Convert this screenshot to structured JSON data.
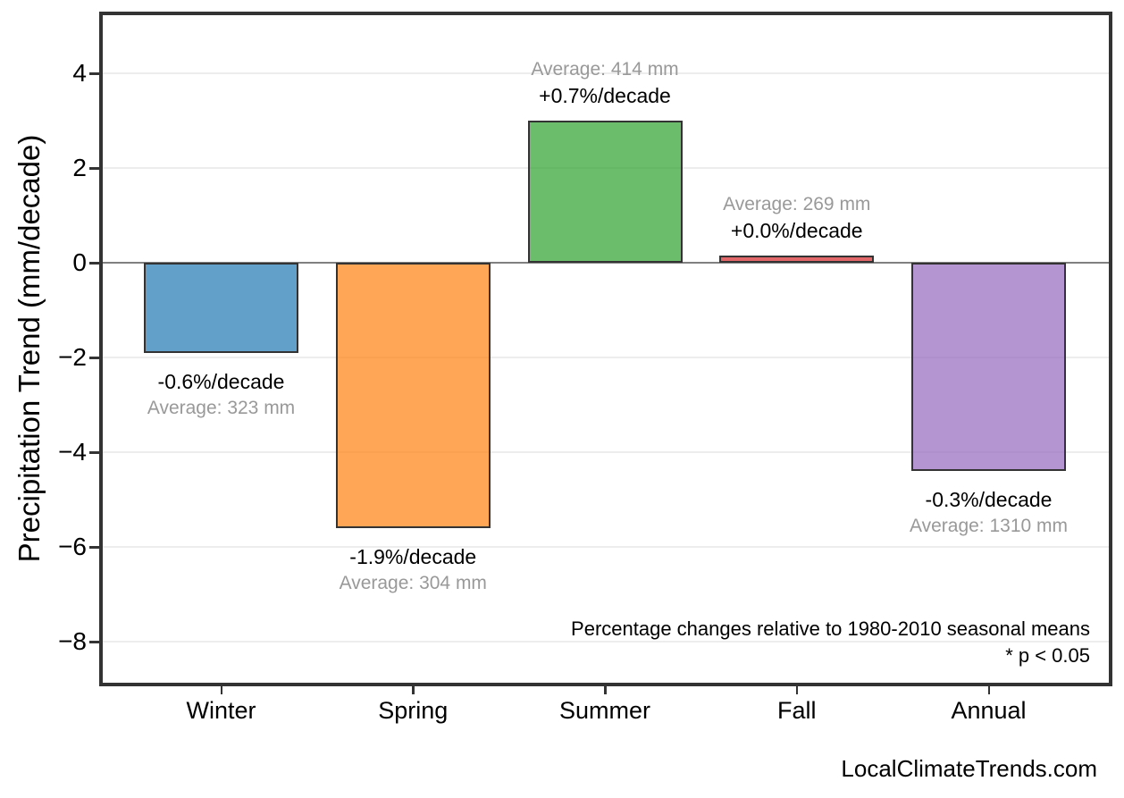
{
  "chart_data": {
    "type": "bar",
    "title": "",
    "ylabel": "Precipitation Trend (mm/decade)",
    "xlabel": "",
    "categories": [
      "Winter",
      "Spring",
      "Summer",
      "Fall",
      "Annual"
    ],
    "values": [
      -1.9,
      -5.6,
      3.0,
      0.15,
      -4.4
    ],
    "pct_labels": [
      "-0.6%/decade",
      "-1.9%/decade",
      "+0.7%/decade",
      "+0.0%/decade",
      "-0.3%/decade"
    ],
    "avg_labels": [
      "Average: 323 mm",
      "Average: 304 mm",
      "Average: 414 mm",
      "Average: 269 mm",
      "Average: 1310 mm"
    ],
    "bar_colors": [
      "#1f77b4",
      "#ff7f0e",
      "#2ca02c",
      "#d62728",
      "#9467bd"
    ],
    "bar_alpha": 0.7,
    "bar_edge_color": "#333333",
    "yticks": [
      4,
      2,
      0,
      -2,
      -4,
      -6,
      -8
    ],
    "ytick_labels": [
      "4",
      "2",
      "0",
      "−2",
      "−4",
      "−6",
      "−8"
    ],
    "ylim": [
      -8.95,
      5.3
    ],
    "grid": "horizontal-light",
    "gridline_color": "#ededed",
    "zero_line_color": "#808080",
    "legend": "none",
    "annotation_line1": "Percentage changes relative to 1980-2010 seasonal means",
    "annotation_line2": "* p < 0.05",
    "watermark": "LocalClimateTrends.com",
    "text_colors": {
      "pct": "#000000",
      "avg": "#999999"
    }
  }
}
